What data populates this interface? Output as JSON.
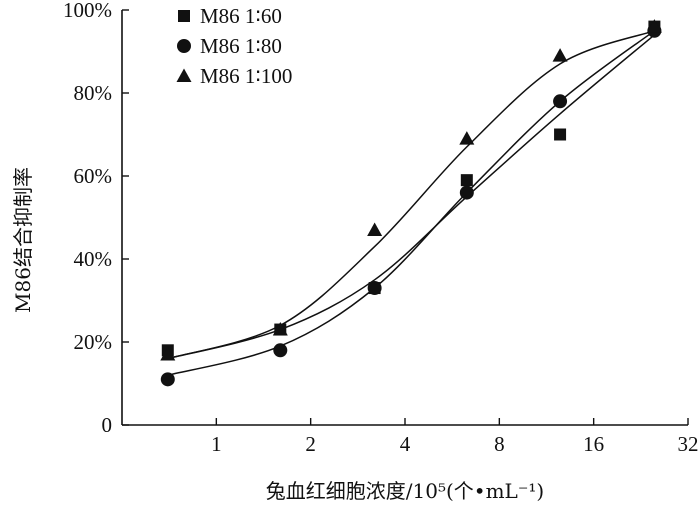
{
  "chart_data": {
    "type": "scatter",
    "title": "",
    "xlabel": "兔血红细胞浓度/10⁵(个•mL⁻¹)",
    "ylabel": "M86结合抑制率",
    "x_scale": "log2",
    "xlim": [
      0.5,
      32
    ],
    "ylim": [
      0,
      100
    ],
    "x_ticks": [
      1,
      2,
      4,
      8,
      16,
      32
    ],
    "x_tick_labels": [
      "1",
      "2",
      "4",
      "8",
      "16",
      "32"
    ],
    "y_ticks": [
      0,
      20,
      40,
      60,
      80,
      100
    ],
    "y_tick_labels": [
      "0",
      "20%",
      "40%",
      "60%",
      "80%",
      "100%"
    ],
    "legend_position": "top-left",
    "series": [
      {
        "name": "M86 1∶60",
        "marker": "square",
        "x": [
          0.7,
          1.6,
          3.2,
          6.3,
          12.5,
          25
        ],
        "y": [
          18,
          23,
          33,
          59,
          70,
          96
        ],
        "fit_y": [
          16,
          23,
          35,
          55,
          75,
          94
        ]
      },
      {
        "name": "M86 1∶80",
        "marker": "circle",
        "x": [
          0.7,
          1.6,
          3.2,
          6.3,
          12.5,
          25
        ],
        "y": [
          11,
          18,
          33,
          56,
          78,
          95
        ],
        "fit_y": [
          12,
          19,
          33,
          56,
          78,
          95
        ]
      },
      {
        "name": "M86 1∶100",
        "marker": "triangle",
        "x": [
          0.7,
          1.6,
          3.2,
          6.3,
          12.5,
          25
        ],
        "y": [
          17,
          23,
          47,
          69,
          89,
          96
        ],
        "fit_y": [
          16,
          24,
          43,
          67,
          87,
          95
        ]
      }
    ]
  }
}
